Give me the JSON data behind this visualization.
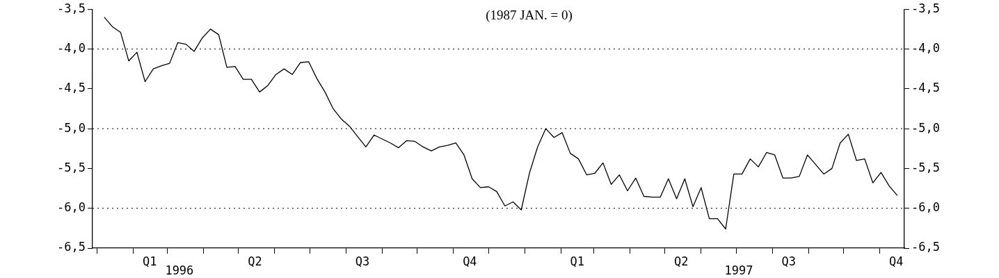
{
  "chart_data": {
    "type": "line",
    "title": "(1987 JAN. = 0)",
    "x": [
      "1996-01-07",
      "1996-01-14",
      "1996-01-21",
      "1996-01-28",
      "1996-02-04",
      "1996-02-11",
      "1996-02-18",
      "1996-02-25",
      "1996-03-03",
      "1996-03-10",
      "1996-03-17",
      "1996-03-24",
      "1996-03-31",
      "1996-04-07",
      "1996-04-14",
      "1996-04-21",
      "1996-04-28",
      "1996-05-05",
      "1996-05-12",
      "1996-05-19",
      "1996-05-26",
      "1996-06-02",
      "1996-06-09",
      "1996-06-16",
      "1996-06-23",
      "1996-06-30",
      "1996-07-07",
      "1996-07-14",
      "1996-07-21",
      "1996-07-28",
      "1996-08-04",
      "1996-08-11",
      "1996-08-18",
      "1996-08-25",
      "1996-09-01",
      "1996-09-08",
      "1996-09-15",
      "1996-09-22",
      "1996-09-29",
      "1996-10-06",
      "1996-10-13",
      "1996-10-20",
      "1996-10-27",
      "1996-11-03",
      "1996-11-10",
      "1996-11-17",
      "1996-11-24",
      "1996-12-01",
      "1996-12-08",
      "1996-12-15",
      "1996-12-22",
      "1996-12-29",
      "1997-01-05",
      "1997-01-12",
      "1997-01-19",
      "1997-01-26",
      "1997-02-02",
      "1997-02-09",
      "1997-02-16",
      "1997-02-23",
      "1997-03-02",
      "1997-03-09",
      "1997-03-16",
      "1997-03-23",
      "1997-03-30",
      "1997-04-06",
      "1997-04-13",
      "1997-04-20",
      "1997-04-27",
      "1997-05-04",
      "1997-05-11",
      "1997-05-18",
      "1997-05-25",
      "1997-06-01",
      "1997-06-08",
      "1997-06-15",
      "1997-06-22",
      "1997-06-29",
      "1997-07-06",
      "1997-07-13",
      "1997-07-20",
      "1997-07-27",
      "1997-08-03",
      "1997-08-10",
      "1997-08-17",
      "1997-08-24",
      "1997-08-31",
      "1997-09-07",
      "1997-09-14",
      "1997-09-21",
      "1997-09-28",
      "1997-10-05",
      "1997-10-12",
      "1997-10-19",
      "1997-10-26",
      "1997-11-02",
      "1997-11-09",
      "1997-11-16"
    ],
    "series": [
      {
        "color": "#000000",
        "values": [
          -3.6,
          -3.72,
          -3.79,
          -4.15,
          -4.04,
          -4.41,
          -4.25,
          -4.21,
          -4.18,
          -3.92,
          -3.94,
          -4.03,
          -3.86,
          -3.75,
          -3.82,
          -4.23,
          -4.22,
          -4.38,
          -4.38,
          -4.54,
          -4.46,
          -4.32,
          -4.25,
          -4.32,
          -4.17,
          -4.16,
          -4.37,
          -4.54,
          -4.75,
          -4.88,
          -4.97,
          -5.1,
          -5.23,
          -5.08,
          -5.13,
          -5.18,
          -5.24,
          -5.15,
          -5.16,
          -5.23,
          -5.28,
          -5.23,
          -5.21,
          -5.18,
          -5.33,
          -5.63,
          -5.74,
          -5.73,
          -5.79,
          -5.97,
          -5.92,
          -6.02,
          -5.56,
          -5.23,
          -5.0,
          -5.11,
          -5.05,
          -5.31,
          -5.38,
          -5.58,
          -5.56,
          -5.43,
          -5.7,
          -5.58,
          -5.78,
          -5.62,
          -5.85,
          -5.86,
          -5.86,
          -5.63,
          -5.88,
          -5.63,
          -5.98,
          -5.74,
          -6.13,
          -6.13,
          -6.26,
          -5.57,
          -5.57,
          -5.38,
          -5.48,
          -5.3,
          -5.33,
          -5.62,
          -5.62,
          -5.6,
          -5.33,
          -5.45,
          -5.57,
          -5.5,
          -5.18,
          -5.07,
          -5.4,
          -5.38,
          -5.68,
          -5.55,
          -5.72,
          -5.84
        ]
      }
    ],
    "xlim": [
      "1995-12-28",
      "1997-11-22"
    ],
    "xticks": [
      {
        "value": "1996-01-01",
        "label": null
      },
      {
        "value": "1996-02-01",
        "label": null
      },
      {
        "value": "1996-02-15",
        "label": "Q1"
      },
      {
        "value": "1996-03-01",
        "label": null
      },
      {
        "value": "1996-04-01",
        "label": null
      },
      {
        "value": "1996-05-01",
        "label": null
      },
      {
        "value": "1996-05-15",
        "label": "Q2"
      },
      {
        "value": "1996-06-01",
        "label": null
      },
      {
        "value": "1996-07-01",
        "label": null
      },
      {
        "value": "1996-08-01",
        "label": null
      },
      {
        "value": "1996-08-15",
        "label": "Q3"
      },
      {
        "value": "1996-09-01",
        "label": null
      },
      {
        "value": "1996-10-01",
        "label": null
      },
      {
        "value": "1996-11-01",
        "label": null
      },
      {
        "value": "1996-11-15",
        "label": "Q4"
      },
      {
        "value": "1996-12-01",
        "label": null
      },
      {
        "value": "1997-01-01",
        "label": null
      },
      {
        "value": "1997-02-01",
        "label": null
      },
      {
        "value": "1997-02-15",
        "label": "Q1"
      },
      {
        "value": "1997-03-01",
        "label": null
      },
      {
        "value": "1997-04-01",
        "label": null
      },
      {
        "value": "1997-05-01",
        "label": null
      },
      {
        "value": "1997-05-15",
        "label": "Q2"
      },
      {
        "value": "1997-06-01",
        "label": null
      },
      {
        "value": "1997-07-01",
        "label": null
      },
      {
        "value": "1997-08-01",
        "label": null
      },
      {
        "value": "1997-08-15",
        "label": "Q3"
      },
      {
        "value": "1997-09-01",
        "label": null
      },
      {
        "value": "1997-10-01",
        "label": null
      },
      {
        "value": "1997-11-01",
        "label": null
      },
      {
        "value": "1997-11-15",
        "label": "Q4"
      }
    ],
    "ylim": [
      -6.5,
      -3.5
    ],
    "yticks": [
      {
        "value": -6.5,
        "label": "-6,5"
      },
      {
        "value": -6.0,
        "label": "-6,0"
      },
      {
        "value": -5.5,
        "label": "-5,5"
      },
      {
        "value": -5.0,
        "label": "-5,0"
      },
      {
        "value": -4.5,
        "label": "-4,5"
      },
      {
        "value": -4.0,
        "label": "-4,0"
      },
      {
        "value": -3.5,
        "label": "-3,5"
      }
    ],
    "y2lim": [
      -6.5,
      -3.5
    ],
    "y2ticks": [
      {
        "value": -6.5,
        "label": "-6,5"
      },
      {
        "value": -6.0,
        "label": "-6,0"
      },
      {
        "value": -5.5,
        "label": "-5,5"
      },
      {
        "value": -5.0,
        "label": "-5,0"
      },
      {
        "value": -4.5,
        "label": "-4,5"
      },
      {
        "value": -4.0,
        "label": "-4,0"
      },
      {
        "value": -3.5,
        "label": "-3,5"
      }
    ],
    "ref_lines": [
      {
        "axis": "y",
        "value": -4.0,
        "line_style": "dotted"
      },
      {
        "axis": "y",
        "value": -5.0,
        "line_style": "dotted"
      },
      {
        "axis": "y",
        "value": -6.0,
        "line_style": "dotted"
      }
    ],
    "annotations": [
      "1996",
      "1997"
    ]
  }
}
